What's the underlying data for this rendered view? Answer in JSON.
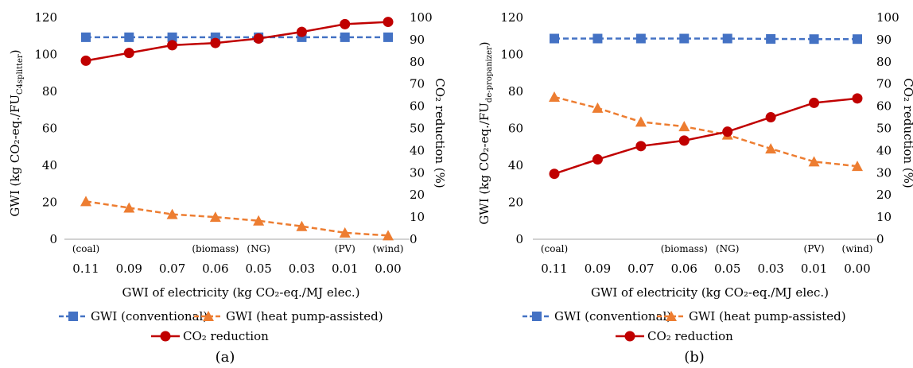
{
  "chart_data": [
    {
      "type": "line",
      "panel_label": "(a)",
      "x": [
        "0.11",
        "0.09",
        "0.07",
        "0.06",
        "0.05",
        "0.03",
        "0.01",
        "0.00"
      ],
      "x_annotations": [
        "(coal)",
        "",
        "",
        "(biomass)",
        "(NG)",
        "",
        "(PV)",
        "(wind)"
      ],
      "xlabel": "GWI of electricity  (kg CO₂-eq./MJ elec.)",
      "ylabel": "GWI (kg CO₂-eq./FU",
      "ylabel_sub": "C4splitter",
      "ylabel_end": ")",
      "y2label": "CO₂ reduction (%)",
      "ylim": [
        0,
        120
      ],
      "y_ticks": [
        "0",
        "20",
        "40",
        "60",
        "80",
        "100",
        "120"
      ],
      "y2lim": [
        0,
        100
      ],
      "y2_ticks": [
        "0",
        "10",
        "20",
        "30",
        "40",
        "50",
        "60",
        "70",
        "80",
        "90",
        "100"
      ],
      "series": [
        {
          "name": "GWI (conventional)",
          "axis": "left",
          "color": "#4472C4",
          "marker": "square",
          "dash": true,
          "values": [
            109.3,
            109.3,
            109.3,
            109.3,
            109.3,
            109.3,
            109.3,
            109.3
          ]
        },
        {
          "name": "GWI (heat pump-assisted)",
          "axis": "left",
          "color": "#ED7D31",
          "marker": "triangle",
          "dash": true,
          "values": [
            20.5,
            17,
            13.5,
            12,
            10,
            7,
            3.5,
            2
          ]
        },
        {
          "name": "CO₂ reduction",
          "axis": "right",
          "color": "#C00000",
          "marker": "circle",
          "dash": false,
          "values": [
            80.5,
            84,
            87.5,
            88.5,
            90.5,
            93.5,
            97,
            98
          ]
        }
      ],
      "legend": "bottom"
    },
    {
      "type": "line",
      "panel_label": "(b)",
      "x": [
        "0.11",
        "0.09",
        "0.07",
        "0.06",
        "0.05",
        "0.03",
        "0.01",
        "0.00"
      ],
      "x_annotations": [
        "(coal)",
        "",
        "",
        "(biomass)",
        "(NG)",
        "",
        "(PV)",
        "(wind)"
      ],
      "xlabel": "GWI of electricity  (kg CO₂-eq./MJ elec.)",
      "ylabel": "GWI (kg CO₂-eq./FU",
      "ylabel_sub": "de-propanizer",
      "ylabel_end": ")",
      "y2label": "CO₂ reduction (%)",
      "ylim": [
        0,
        120
      ],
      "y_ticks": [
        "0",
        "20",
        "40",
        "60",
        "80",
        "100",
        "120"
      ],
      "y2lim": [
        0,
        100
      ],
      "y2_ticks": [
        "0",
        "10",
        "20",
        "30",
        "40",
        "50",
        "60",
        "70",
        "80",
        "90",
        "100"
      ],
      "series": [
        {
          "name": "GWI (conventional)",
          "axis": "left",
          "color": "#4472C4",
          "marker": "square",
          "dash": true,
          "values": [
            108.6,
            108.6,
            108.6,
            108.6,
            108.6,
            108.4,
            108.3,
            108.3
          ]
        },
        {
          "name": "GWI (heat pump-assisted)",
          "axis": "left",
          "color": "#ED7D31",
          "marker": "triangle",
          "dash": true,
          "values": [
            77,
            71,
            63.5,
            61,
            56.5,
            49,
            42,
            39.5
          ]
        },
        {
          "name": "CO₂ reduction",
          "axis": "right",
          "color": "#C00000",
          "marker": "circle",
          "dash": false,
          "values": [
            29.5,
            36,
            42,
            44.5,
            48.5,
            55,
            61.5,
            63.5
          ]
        }
      ],
      "legend": "bottom"
    }
  ]
}
